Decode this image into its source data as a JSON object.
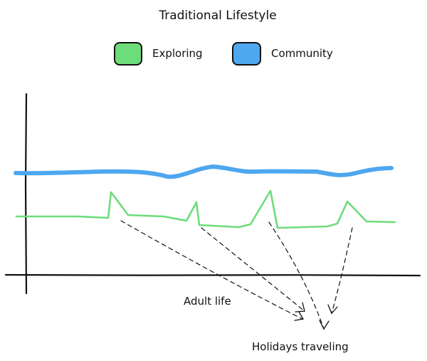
{
  "title": "Traditional Lifestyle",
  "legend": [
    {
      "label": "Exploring",
      "color": "#6ddc7a"
    },
    {
      "label": "Community",
      "color": "#4ea7ef"
    }
  ],
  "annotations": {
    "adult_life": "Adult life",
    "holidays_traveling": "Holidays traveling"
  },
  "colors": {
    "exploring": "#6ddc7a",
    "community": "#4ea7ef",
    "ink": "#111111"
  }
}
